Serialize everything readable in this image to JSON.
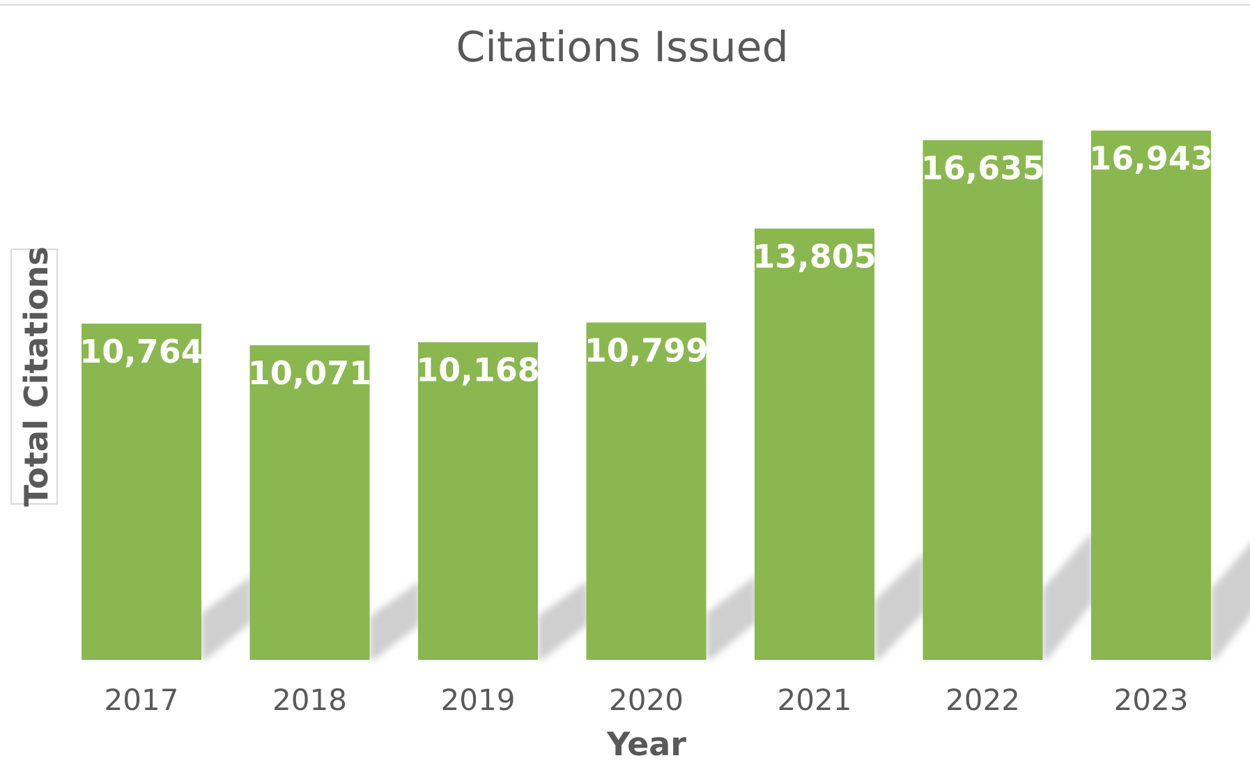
{
  "chart_data": {
    "type": "bar",
    "title": "Citations Issued",
    "xlabel": "Year",
    "ylabel": "Total Citations",
    "categories": [
      "2017",
      "2018",
      "2019",
      "2020",
      "2021",
      "2022",
      "2023"
    ],
    "values": [
      10764,
      10071,
      10168,
      10799,
      13805,
      16635,
      16943
    ],
    "data_labels": [
      "10,764",
      "10,071",
      "10,168",
      "10,799",
      "13,805",
      "16,635",
      "16,943"
    ],
    "ylim": [
      0,
      17000
    ],
    "grid": false,
    "legend": "none",
    "colors": {
      "bar": "#8AB74F",
      "shadow": "#cfcfcf",
      "text": "#595959",
      "label": "#ffffff"
    }
  }
}
